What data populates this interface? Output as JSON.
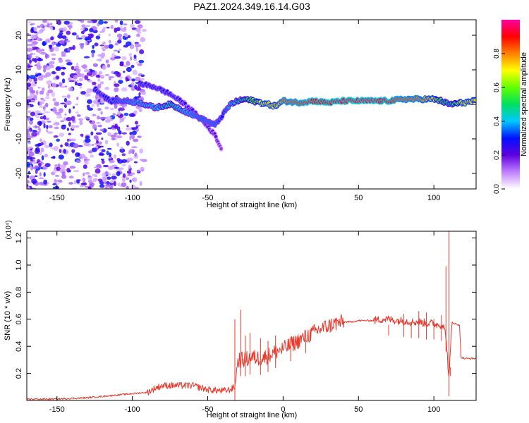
{
  "title": "PAZ1.2024.349.16.14.G03",
  "chart_data": [
    {
      "type": "heatmap",
      "xlabel": "Height of straight line (km)",
      "ylabel": "Frequency (Hz)",
      "xlim": [
        -170,
        128
      ],
      "ylim": [
        -24.5,
        24.5
      ],
      "xticks": [
        -150,
        -100,
        -50,
        0,
        50,
        100
      ],
      "xtick_labels": [
        "-150",
        "-100",
        "-50",
        "0",
        "50",
        "100"
      ],
      "yticks": [
        20,
        10,
        0,
        -10,
        -20
      ],
      "ytick_labels": [
        "20",
        "10",
        "0",
        "-10",
        "-20"
      ],
      "colorbar": {
        "label": "Normalized spectral amplitude",
        "range": [
          0,
          1
        ],
        "ticks": [
          0.0,
          0.2,
          0.4,
          0.6,
          0.8
        ],
        "tick_labels": [
          "0.0",
          "0.2",
          "0.4",
          "0.6",
          "0.8"
        ],
        "colors": [
          "#ffffff",
          "#c080ff",
          "#6000e0",
          "#0010ff",
          "#00c8ff",
          "#00e060",
          "#60ff00",
          "#ffff00",
          "#ff8000",
          "#ff0000",
          "#ff00a0"
        ]
      },
      "ridge": {
        "x": [
          -125,
          -115,
          -105,
          -95,
          -85,
          -75,
          -65,
          -55,
          -45,
          -40,
          -35,
          -30,
          -25,
          -20,
          -15,
          -10,
          -5,
          0,
          10,
          20,
          30,
          40,
          50,
          60,
          70,
          80,
          90,
          100,
          105,
          110,
          120,
          128
        ],
        "freq": [
          4.5,
          1,
          1,
          0.5,
          -1,
          0,
          -2,
          -4,
          -6,
          -3,
          0,
          1,
          1.5,
          1,
          0.5,
          0,
          -0.5,
          1,
          0.5,
          1,
          0.5,
          1,
          1,
          1,
          1,
          1.5,
          1.5,
          1.5,
          1,
          0,
          0.5,
          1
        ],
        "amplitude": [
          0.3,
          0.3,
          0.35,
          0.4,
          0.4,
          0.45,
          0.4,
          0.35,
          0.35,
          0.3,
          0.4,
          0.45,
          0.5,
          0.6,
          0.7,
          0.75,
          0.7,
          0.8,
          0.85,
          0.9,
          0.9,
          0.95,
          0.95,
          0.95,
          0.9,
          0.8,
          0.8,
          0.7,
          0.55,
          0.45,
          0.75,
          0.7
        ]
      },
      "ridge2": {
        "x": [
          -95,
          -85,
          -75,
          -65,
          -55,
          -45,
          -41
        ],
        "freq": [
          6,
          5,
          3,
          0,
          -4,
          -9,
          -13
        ],
        "amplitude": [
          0.3,
          0.3,
          0.3,
          0.25,
          0.25,
          0.2,
          0.15
        ]
      }
    },
    {
      "type": "line",
      "xlabel": "Height of straight line (km)",
      "ylabel": "SNR (10 * v/v)",
      "yscale_label": "(x10⁴)",
      "xlim": [
        -170,
        128
      ],
      "ylim": [
        0,
        1.25
      ],
      "xticks": [
        -150,
        -100,
        -50,
        0,
        50,
        100
      ],
      "xtick_labels": [
        "-150",
        "-100",
        "-50",
        "0",
        "50",
        "100"
      ],
      "yticks": [
        0.2,
        0.4,
        0.6,
        0.8,
        1.0,
        1.2
      ],
      "ytick_labels": [
        "0.2",
        "0.4",
        "0.6",
        "0.8",
        "1.0",
        "1.2"
      ],
      "color": "#e83a2e",
      "series": [
        {
          "x": [
            -170,
            -150,
            -130,
            -120,
            -110,
            -100,
            -90,
            -85,
            -80,
            -70,
            -60,
            -50,
            -40,
            -35,
            -32,
            -30,
            -25,
            -20,
            -15,
            -10,
            -5,
            0,
            5,
            10,
            15,
            20,
            25,
            30,
            35,
            40,
            45,
            50,
            55,
            60,
            65,
            70,
            75,
            80,
            85,
            90,
            95,
            100,
            102,
            104,
            106,
            108,
            110,
            112,
            115,
            117,
            118,
            120,
            125,
            128
          ],
          "y": [
            0.01,
            0.01,
            0.02,
            0.03,
            0.04,
            0.05,
            0.06,
            0.09,
            0.11,
            0.11,
            0.11,
            0.08,
            0.07,
            0.08,
            0.1,
            0.3,
            0.3,
            0.32,
            0.31,
            0.33,
            0.36,
            0.38,
            0.41,
            0.44,
            0.47,
            0.5,
            0.53,
            0.55,
            0.57,
            0.58,
            0.58,
            0.59,
            0.59,
            0.59,
            0.6,
            0.6,
            0.59,
            0.59,
            0.58,
            0.58,
            0.57,
            0.57,
            0.56,
            0.56,
            0.56,
            0.48,
            0.15,
            0.58,
            0.56,
            0.56,
            0.32,
            0.31,
            0.31,
            0.31
          ],
          "spikes": {
            "x": [
              -32,
              -28,
              -25,
              -22,
              -15,
              -10,
              -5,
              5,
              15,
              70,
              80,
              85,
              90,
              95,
              100,
              105,
              108,
              110,
              111
            ],
            "y": [
              0.6,
              0.67,
              0.48,
              0.5,
              0.46,
              0.44,
              0.48,
              0.47,
              0.45,
              0.56,
              0.64,
              0.58,
              0.66,
              0.65,
              0.6,
              0.63,
              0.99,
              1.25,
              0.18
            ]
          }
        }
      ]
    }
  ]
}
